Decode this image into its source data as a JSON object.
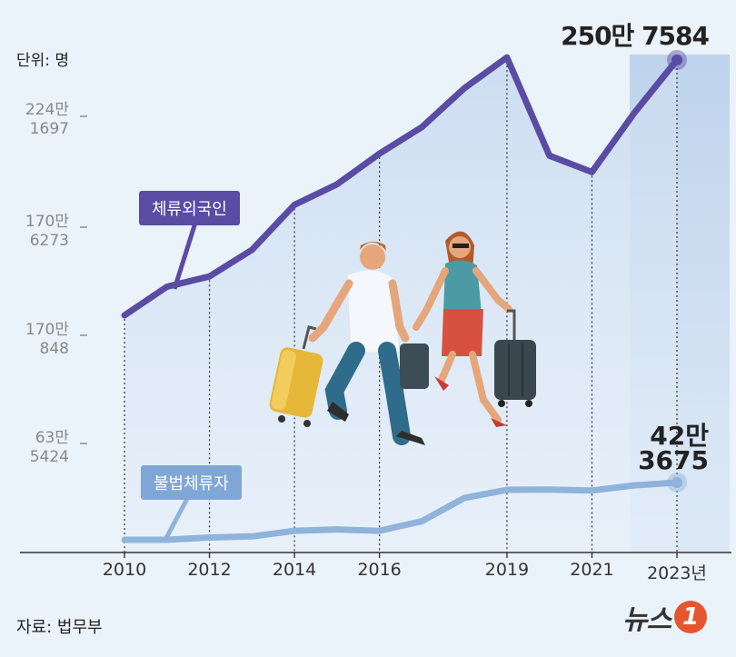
{
  "unit_label": "단위: 명",
  "source_label": "자료: 법무부",
  "logo_text": "뉴스",
  "logo_badge": "1",
  "y_ticks": [
    {
      "top": "224만",
      "bottom": "1697"
    },
    {
      "top": "170만",
      "bottom": "6273"
    },
    {
      "top": "170만",
      "bottom": "848"
    },
    {
      "top": "63만",
      "bottom": "5424"
    }
  ],
  "series_tags": {
    "foreign": "체류외국인",
    "illegal": "불법체류자"
  },
  "end_labels": {
    "foreign": "250만 7584",
    "illegal_line1": "42만",
    "illegal_line2": "3675"
  },
  "colors": {
    "foreign": "#5a4ba3",
    "illegal": "#8fb3da",
    "background": "#eaf2fa",
    "area": "#d3e1f2",
    "logo": "#e4572e"
  },
  "illustration": "traveling-couple-with-suitcases",
  "chart_data": {
    "type": "line",
    "x": [
      2010,
      2011,
      2012,
      2013,
      2014,
      2015,
      2016,
      2017,
      2018,
      2019,
      2020,
      2021,
      2022,
      2023
    ],
    "x_tick_labels": [
      "2010",
      "2012",
      "2014",
      "2016",
      "2019",
      "2021",
      "2023년"
    ],
    "x_tick_values": [
      2010,
      2012,
      2014,
      2016,
      2019,
      2021,
      2023
    ],
    "series": [
      {
        "name": "체류외국인",
        "values": [
          1260000,
          1400000,
          1450000,
          1580000,
          1800000,
          1900000,
          2050000,
          2180000,
          2370000,
          2520000,
          2040000,
          1960000,
          2250000,
          2507584
        ]
      },
      {
        "name": "불법체류자",
        "values": [
          168000,
          168000,
          178000,
          183000,
          208000,
          214000,
          208000,
          251000,
          355000,
          391000,
          392000,
          388000,
          411000,
          423675
        ]
      }
    ],
    "y_scale": "non-linear (tick labels not evenly spaced)",
    "grid": "vertical dotted lines at labeled years"
  }
}
